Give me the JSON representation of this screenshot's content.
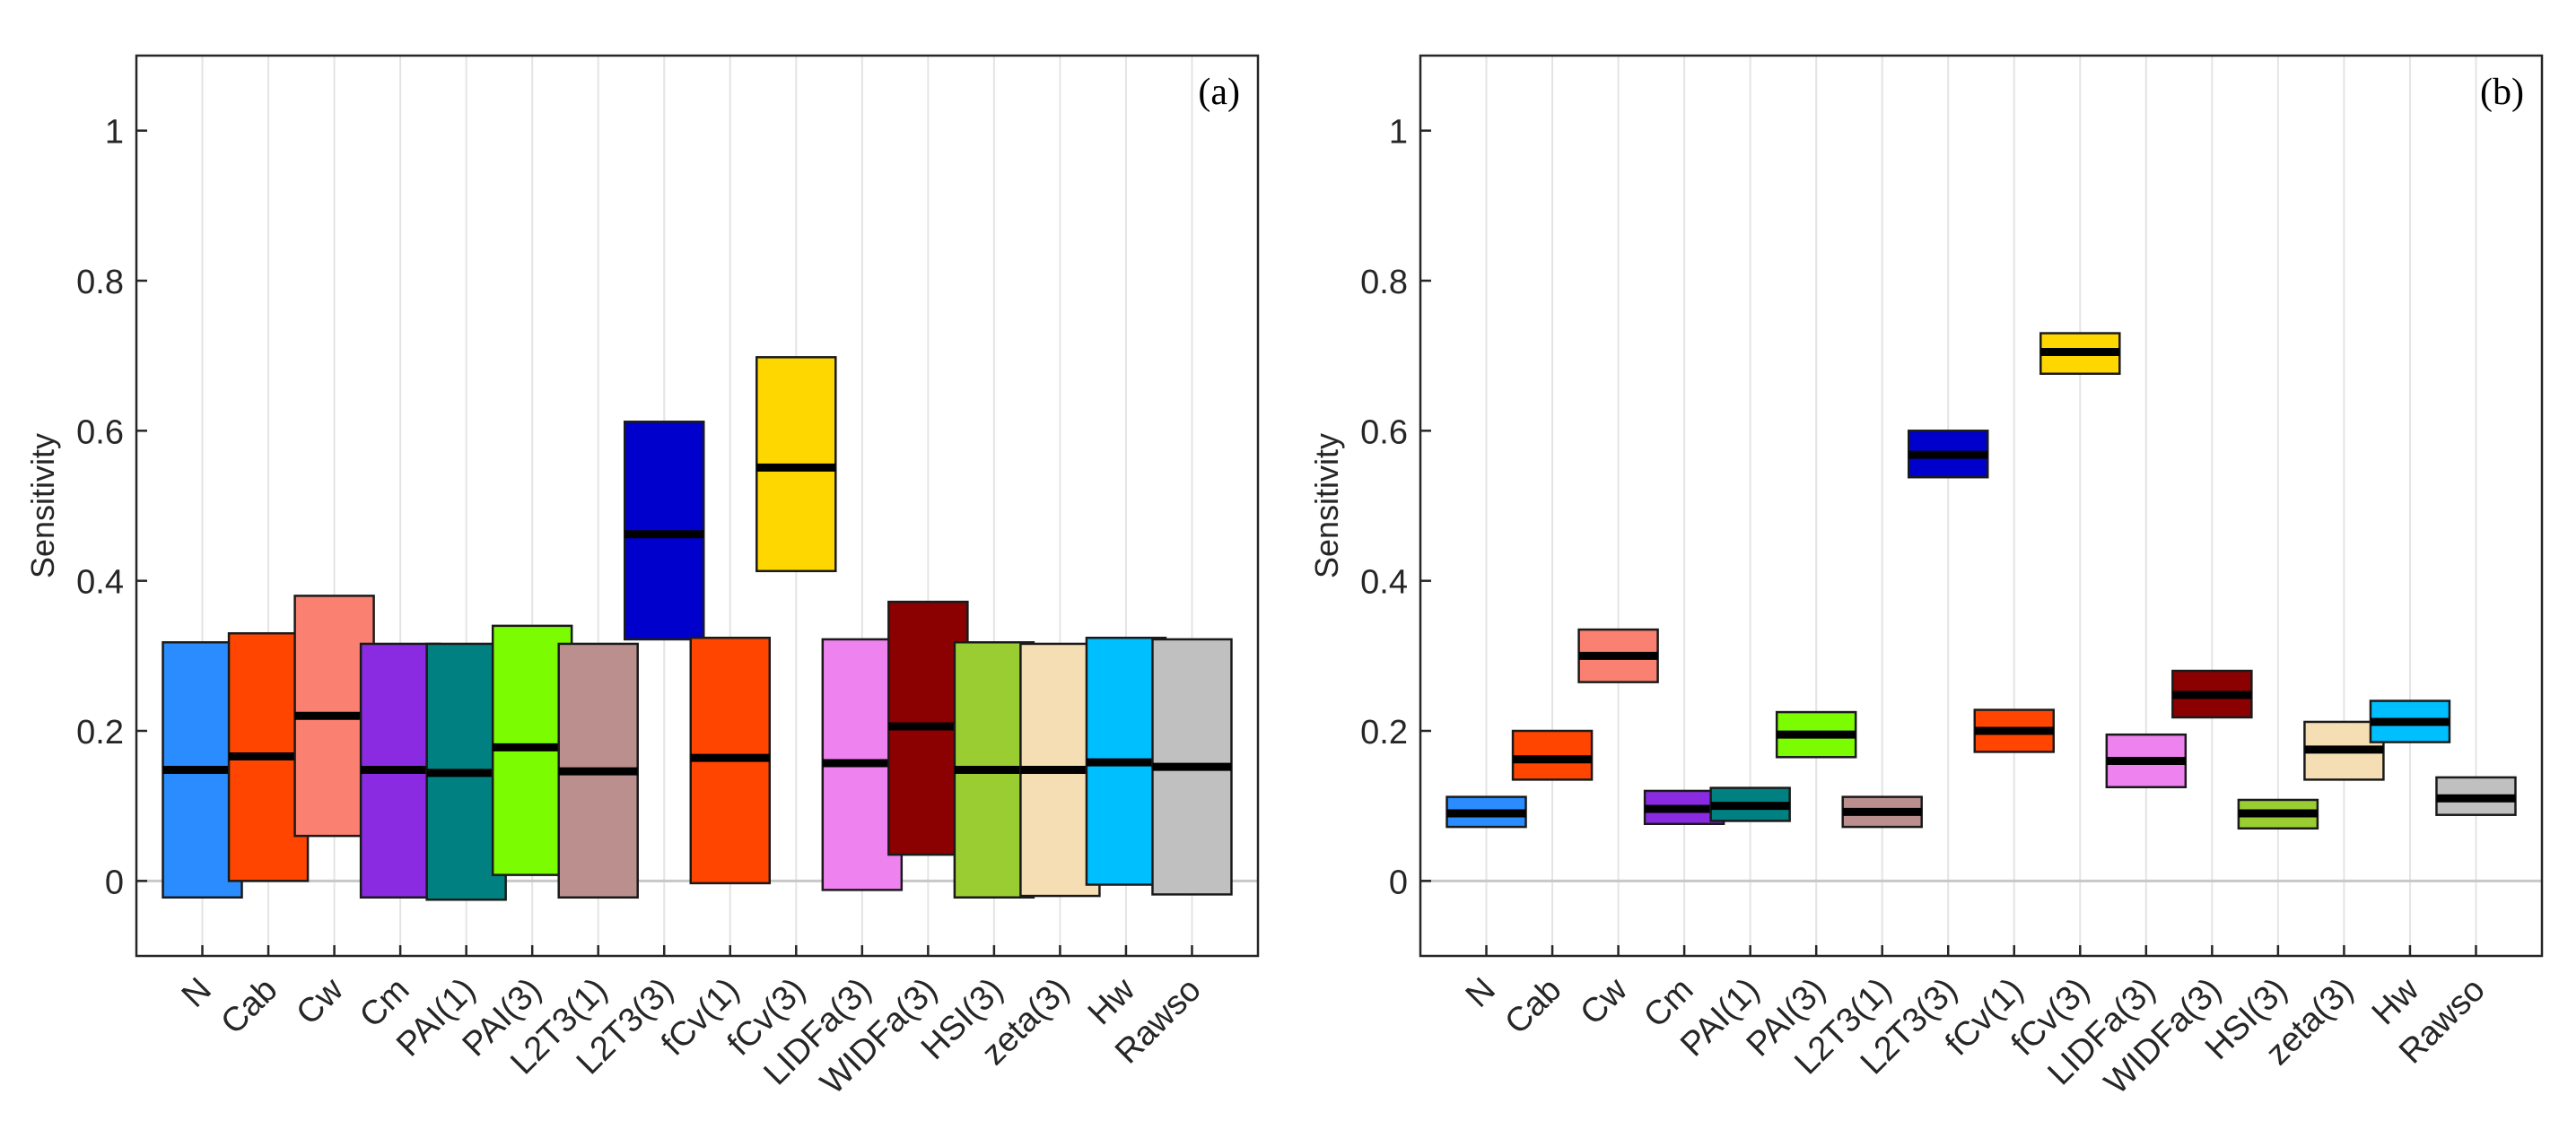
{
  "chart_data": [
    {
      "type": "boxplot",
      "panel_label": "(a)",
      "ylabel": "Sensitivity",
      "ylim": [
        -0.1,
        1.1
      ],
      "yticks": [
        0,
        0.2,
        0.4,
        0.6,
        0.8,
        1
      ],
      "ytick_labels": [
        "0",
        "0.2",
        "0.4",
        "0.6",
        "0.8",
        "1"
      ],
      "grid": "vertical",
      "categories": [
        "N",
        "Cab",
        "Cw",
        "Cm",
        "PAI(1)",
        "PAI(3)",
        "L2T3(1)",
        "L2T3(3)",
        "fCv(1)",
        "fCv(3)",
        "LIDFa(3)",
        "WIDFa(3)",
        "HSI(3)",
        "zeta(3)",
        "Hw",
        "Rawso"
      ],
      "low": [
        -0.022,
        0.0,
        0.06,
        -0.022,
        -0.025,
        0.008,
        -0.022,
        0.322,
        -0.003,
        0.413,
        -0.012,
        0.035,
        -0.022,
        -0.02,
        -0.005,
        -0.018
      ],
      "median": [
        0.148,
        0.166,
        0.22,
        0.148,
        0.144,
        0.178,
        0.146,
        0.462,
        0.164,
        0.551,
        0.157,
        0.206,
        0.148,
        0.148,
        0.158,
        0.152
      ],
      "high": [
        0.318,
        0.33,
        0.38,
        0.316,
        0.316,
        0.34,
        0.316,
        0.612,
        0.324,
        0.698,
        0.322,
        0.372,
        0.318,
        0.316,
        0.324,
        0.322
      ]
    },
    {
      "type": "boxplot",
      "panel_label": "(b)",
      "ylabel": "Sensitivity",
      "ylim": [
        -0.1,
        1.1
      ],
      "yticks": [
        0,
        0.2,
        0.4,
        0.6,
        0.8,
        1
      ],
      "ytick_labels": [
        "0",
        "0.2",
        "0.4",
        "0.6",
        "0.8",
        "1"
      ],
      "grid": "vertical",
      "categories": [
        "N",
        "Cab",
        "Cw",
        "Cm",
        "PAI(1)",
        "PAI(3)",
        "L2T3(1)",
        "L2T3(3)",
        "fCv(1)",
        "fCv(3)",
        "LIDFa(3)",
        "WIDFa(3)",
        "HSI(3)",
        "zeta(3)",
        "Hw",
        "Rawso"
      ],
      "low": [
        0.072,
        0.135,
        0.265,
        0.076,
        0.08,
        0.165,
        0.072,
        0.538,
        0.172,
        0.676,
        0.125,
        0.218,
        0.07,
        0.135,
        0.185,
        0.088
      ],
      "median": [
        0.09,
        0.162,
        0.3,
        0.096,
        0.1,
        0.195,
        0.092,
        0.568,
        0.2,
        0.705,
        0.16,
        0.248,
        0.09,
        0.175,
        0.212,
        0.11
      ],
      "high": [
        0.112,
        0.2,
        0.335,
        0.12,
        0.124,
        0.225,
        0.112,
        0.6,
        0.228,
        0.73,
        0.195,
        0.28,
        0.108,
        0.212,
        0.24,
        0.138
      ]
    }
  ],
  "series_colors": [
    "#2a8cff",
    "#ff4500",
    "#fa8072",
    "#8a2be2",
    "#008080",
    "#7cfc00",
    "#bc8f8f",
    "#0000cd",
    "#ff4500",
    "#ffd700",
    "#ee82ee",
    "#8b0000",
    "#9acd32",
    "#f5deb3",
    "#00bfff",
    "#c0c0c0"
  ],
  "axis_color": "#262626",
  "grid_color": "#e4e4e4",
  "zero_line_color": "#c8c8c8"
}
